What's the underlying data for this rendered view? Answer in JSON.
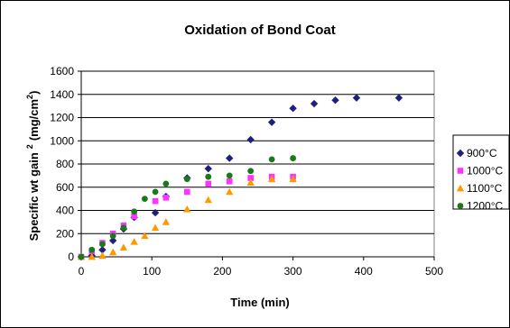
{
  "chart_data": {
    "type": "scatter",
    "title": "Oxidation of Bond Coat",
    "xlabel": "Time (min)",
    "ylabel": "Specific wt gain",
    "ylabel_sup1": "2",
    "ylabel_unit": "(mg/cm",
    "ylabel_sup2": "2",
    "ylabel_close": ")",
    "xlim": [
      0,
      500
    ],
    "ylim": [
      0,
      1600
    ],
    "x_ticks": [
      "0",
      "100",
      "200",
      "300",
      "400",
      "500"
    ],
    "y_ticks": [
      "0",
      "200",
      "400",
      "600",
      "800",
      "1000",
      "1200",
      "1400",
      "1600"
    ],
    "grid": "horizontal",
    "legend_position": "right",
    "series": [
      {
        "name": "900°C",
        "color": "#1F1F7F",
        "marker": "diamond",
        "x": [
          0,
          15,
          30,
          45,
          60,
          75,
          105,
          120,
          150,
          180,
          210,
          240,
          270,
          300,
          330,
          360,
          390,
          450
        ],
        "y": [
          0,
          10,
          60,
          140,
          240,
          340,
          380,
          520,
          680,
          760,
          850,
          1010,
          1160,
          1280,
          1320,
          1350,
          1370,
          1370
        ]
      },
      {
        "name": "1000°C",
        "color": "#FF33FF",
        "marker": "square",
        "x": [
          0,
          15,
          30,
          45,
          60,
          75,
          105,
          120,
          150,
          180,
          210,
          240,
          270,
          300
        ],
        "y": [
          0,
          50,
          120,
          200,
          270,
          350,
          480,
          510,
          560,
          630,
          650,
          680,
          690,
          690
        ]
      },
      {
        "name": "1100°C",
        "color": "#FF9900",
        "marker": "triangle",
        "x": [
          0,
          15,
          30,
          45,
          60,
          75,
          90,
          105,
          120,
          150,
          180,
          210,
          240,
          270,
          300
        ],
        "y": [
          0,
          0,
          10,
          40,
          80,
          130,
          180,
          250,
          300,
          410,
          490,
          560,
          640,
          670,
          670
        ]
      },
      {
        "name": "1200°C",
        "color": "#1A7A1A",
        "marker": "circle",
        "x": [
          0,
          15,
          30,
          45,
          60,
          75,
          90,
          105,
          120,
          150,
          180,
          210,
          240,
          270,
          300
        ],
        "y": [
          0,
          60,
          110,
          180,
          250,
          390,
          500,
          560,
          630,
          670,
          690,
          700,
          740,
          840,
          850
        ]
      }
    ]
  }
}
